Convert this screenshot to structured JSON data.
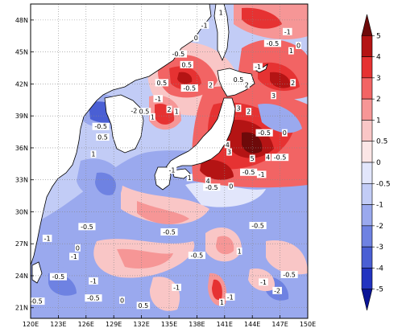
{
  "map": {
    "lon_labels": [
      "120E",
      "123E",
      "126E",
      "129E",
      "132E",
      "135E",
      "138E",
      "141E",
      "144E",
      "147E",
      "150E"
    ],
    "lat_labels": [
      "48N",
      "45N",
      "42N",
      "39N",
      "36N",
      "33N",
      "30N",
      "27N",
      "24N",
      "21N"
    ],
    "lon_range": [
      120,
      150
    ],
    "lat_range": [
      20,
      49.5
    ],
    "land_color": "#ffffff",
    "coastline_color": "#000000",
    "gridline_style": "dotted"
  },
  "colorbar": {
    "labels": [
      "5",
      "4",
      "3",
      "2",
      "1",
      "0.5",
      "0",
      "-0.5",
      "-1",
      "-2",
      "-3",
      "-4",
      "-5"
    ],
    "colors": [
      "#6e0a0a",
      "#b41414",
      "#e63232",
      "#f26464",
      "#f69696",
      "#f9c6c6",
      "#fbe6e6",
      "#e2e6fb",
      "#c2ccf6",
      "#9aa9ee",
      "#6e82e2",
      "#4a5fd4",
      "#2233c0",
      "#0a1496"
    ]
  },
  "contour_labels": [
    {
      "text": "-1",
      "lon": 138.8,
      "lat": 47.4
    },
    {
      "text": "0",
      "lon": 137.9,
      "lat": 46.2
    },
    {
      "text": "1",
      "lon": 140.6,
      "lat": 48.6
    },
    {
      "text": "-0.5",
      "lon": 146.2,
      "lat": 45.7
    },
    {
      "text": "-1",
      "lon": 147.8,
      "lat": 46.8
    },
    {
      "text": "1",
      "lon": 148.2,
      "lat": 45.0
    },
    {
      "text": "0",
      "lon": 149.0,
      "lat": 45.5
    },
    {
      "text": "-0.5",
      "lon": 136.0,
      "lat": 44.7
    },
    {
      "text": "0.5",
      "lon": 136.9,
      "lat": 43.7
    },
    {
      "text": "-1",
      "lon": 144.6,
      "lat": 43.5
    },
    {
      "text": "0.5",
      "lon": 134.2,
      "lat": 42.0
    },
    {
      "text": "-0.5",
      "lon": 137.2,
      "lat": 41.5
    },
    {
      "text": "2",
      "lon": 139.5,
      "lat": 41.8
    },
    {
      "text": "-1",
      "lon": 133.8,
      "lat": 40.5
    },
    {
      "text": "-2",
      "lon": 131.2,
      "lat": 39.4
    },
    {
      "text": "0.5",
      "lon": 132.3,
      "lat": 39.3
    },
    {
      "text": "1",
      "lon": 133.2,
      "lat": 38.8
    },
    {
      "text": "2",
      "lon": 135.0,
      "lat": 39.5
    },
    {
      "text": "1",
      "lon": 135.8,
      "lat": 39.3
    },
    {
      "text": "2",
      "lon": 143.4,
      "lat": 41.8
    },
    {
      "text": "0.5",
      "lon": 142.5,
      "lat": 42.3
    },
    {
      "text": "3",
      "lon": 146.3,
      "lat": 40.8
    },
    {
      "text": "2",
      "lon": 148.4,
      "lat": 42.0
    },
    {
      "text": "3",
      "lon": 142.5,
      "lat": 39.6
    },
    {
      "text": "2",
      "lon": 143.6,
      "lat": 39.3
    },
    {
      "text": "-0.5",
      "lon": 127.6,
      "lat": 37.9
    },
    {
      "text": "0.5",
      "lon": 127.8,
      "lat": 36.9
    },
    {
      "text": "1",
      "lon": 126.8,
      "lat": 35.3
    },
    {
      "text": "-0.5",
      "lon": 145.3,
      "lat": 37.3
    },
    {
      "text": "0",
      "lon": 147.5,
      "lat": 37.3
    },
    {
      "text": "4",
      "lon": 141.3,
      "lat": 36.2
    },
    {
      "text": "3",
      "lon": 141.5,
      "lat": 35.5
    },
    {
      "text": "5",
      "lon": 144.0,
      "lat": 34.9
    },
    {
      "text": "4",
      "lon": 145.7,
      "lat": 35.0
    },
    {
      "text": "-0.5",
      "lon": 147.0,
      "lat": 35.0
    },
    {
      "text": "4",
      "lon": 139.2,
      "lat": 32.8
    },
    {
      "text": "-0.5",
      "lon": 143.6,
      "lat": 33.6
    },
    {
      "text": "-1",
      "lon": 145.0,
      "lat": 33.4
    },
    {
      "text": "-0.5",
      "lon": 139.6,
      "lat": 32.2
    },
    {
      "text": "-1",
      "lon": 135.3,
      "lat": 33.8
    },
    {
      "text": "1",
      "lon": 137.2,
      "lat": 33.1
    },
    {
      "text": "0",
      "lon": 141.7,
      "lat": 32.3
    },
    {
      "text": "-0.5",
      "lon": 126.1,
      "lat": 28.5
    },
    {
      "text": "0",
      "lon": 125.1,
      "lat": 26.5
    },
    {
      "text": "-1",
      "lon": 124.7,
      "lat": 25.7
    },
    {
      "text": "-0.5",
      "lon": 135.0,
      "lat": 28.0
    },
    {
      "text": "-0.5",
      "lon": 138.0,
      "lat": 25.8
    },
    {
      "text": "1",
      "lon": 142.6,
      "lat": 26.2
    },
    {
      "text": "-0.5",
      "lon": 144.6,
      "lat": 28.6
    },
    {
      "text": "-1",
      "lon": 121.8,
      "lat": 27.4
    },
    {
      "text": "-0.5",
      "lon": 123.0,
      "lat": 23.8
    },
    {
      "text": "-1",
      "lon": 126.8,
      "lat": 23.4
    },
    {
      "text": "-1",
      "lon": 135.8,
      "lat": 22.8
    },
    {
      "text": "-0.5",
      "lon": 126.8,
      "lat": 21.8
    },
    {
      "text": "0",
      "lon": 129.9,
      "lat": 21.6
    },
    {
      "text": "-1",
      "lon": 141.6,
      "lat": 21.9
    },
    {
      "text": "-2",
      "lon": 146.7,
      "lat": 22.5
    },
    {
      "text": "-0.5",
      "lon": 148.0,
      "lat": 24.0
    },
    {
      "text": "-1",
      "lon": 145.2,
      "lat": 23.3
    },
    {
      "text": "1",
      "lon": 140.7,
      "lat": 21.4
    },
    {
      "text": "0.5",
      "lon": 132.2,
      "lat": 21.1
    },
    {
      "text": "-0.5",
      "lon": 120.6,
      "lat": 21.5
    }
  ]
}
